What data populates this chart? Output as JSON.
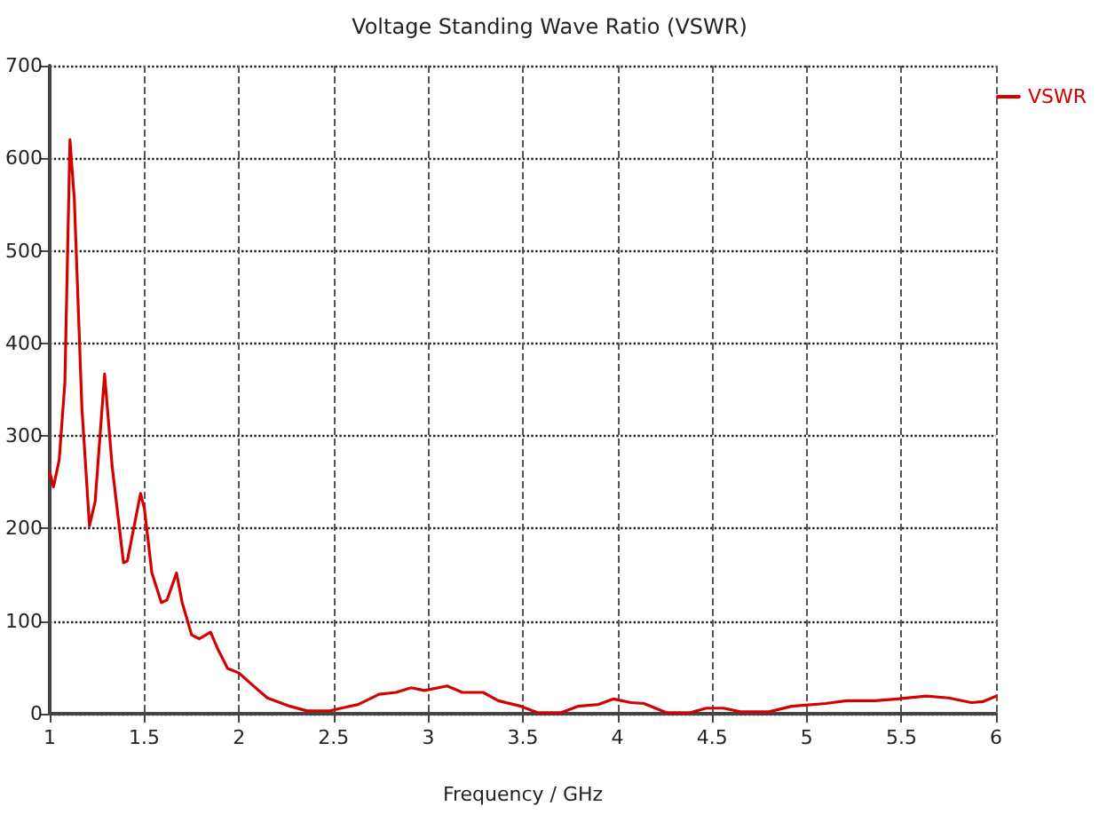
{
  "chart_data": {
    "type": "line",
    "title": "Voltage Standing Wave Ratio (VSWR)",
    "xlabel": "Frequency / GHz",
    "xlim": [
      1,
      6
    ],
    "xticks": [
      1,
      1.5,
      2,
      2.5,
      3,
      3.5,
      4,
      4.5,
      5,
      5.5,
      6
    ],
    "ylim": [
      0,
      700
    ],
    "yticks": [
      0,
      100,
      200,
      300,
      400,
      500,
      600,
      700
    ],
    "grid": true,
    "legend": "top right",
    "marker": "none",
    "line_style": "solid",
    "series": [
      {
        "name": "VSWR",
        "color": "#d40000",
        "x": [
          1.0,
          1.02,
          1.05,
          1.08,
          1.107,
          1.13,
          1.17,
          1.21,
          1.24,
          1.29,
          1.33,
          1.39,
          1.41,
          1.48,
          1.5,
          1.54,
          1.59,
          1.62,
          1.67,
          1.7,
          1.75,
          1.79,
          1.85,
          1.89,
          1.94,
          2.0,
          2.06,
          2.15,
          2.27,
          2.36,
          2.48,
          2.54,
          2.63,
          2.74,
          2.83,
          2.91,
          2.98,
          3.1,
          3.18,
          3.29,
          3.37,
          3.49,
          3.58,
          3.7,
          3.79,
          3.9,
          3.98,
          4.07,
          4.14,
          4.26,
          4.38,
          4.47,
          4.56,
          4.65,
          4.8,
          4.92,
          5.1,
          5.21,
          5.36,
          5.48,
          5.63,
          5.75,
          5.87,
          5.93,
          6.0
        ],
        "values": [
          261,
          245,
          274,
          357,
          620,
          556,
          331,
          203,
          229,
          367,
          267,
          163,
          165,
          238,
          222,
          152,
          120,
          123,
          152,
          120,
          85,
          81,
          88,
          69,
          49,
          44,
          33,
          17,
          8,
          3,
          3,
          6,
          10,
          21,
          23,
          28,
          25,
          30,
          23,
          23,
          14,
          8,
          1,
          1,
          8,
          10,
          16,
          12,
          11,
          1,
          1,
          6,
          6,
          2,
          2,
          8,
          11,
          14,
          14,
          16,
          19,
          17,
          12,
          13,
          19
        ]
      }
    ]
  }
}
